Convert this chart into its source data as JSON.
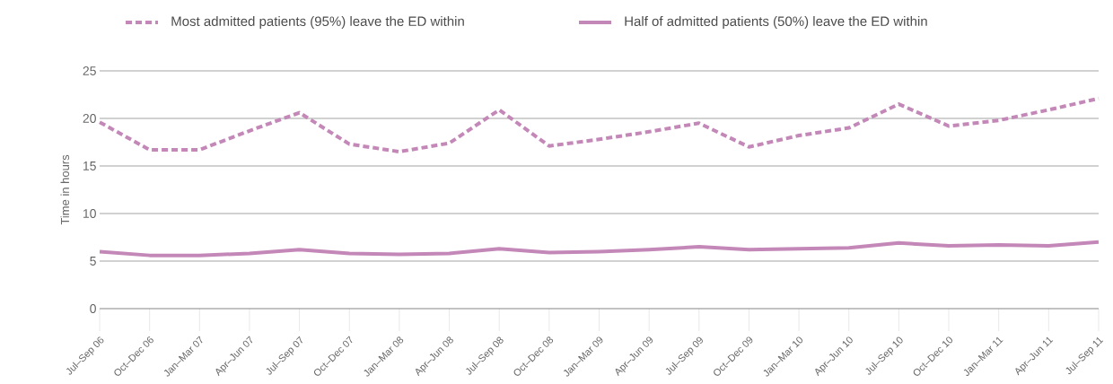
{
  "chart_data": {
    "type": "line",
    "ylabel": "Time in hours",
    "categories": [
      "Jul–Sep 06",
      "Oct–Dec 06",
      "Jan–Mar 07",
      "Apr–Jun 07",
      "Jul–Sep 07",
      "Oct–Dec 07",
      "Jan–Mar 08",
      "Apr–Jun 08",
      "Jul–Sep 08",
      "Oct–Dec 08",
      "Jan–Mar 09",
      "Apr–Jun 09",
      "Jul–Sep 09",
      "Oct–Dec 09",
      "Jan–Mar 10",
      "Apr–Jun 10",
      "Jul–Sep 10",
      "Oct–Dec 10",
      "Jan–Mar 11",
      "Apr–Jun 11",
      "Jul–Sep 11"
    ],
    "series": [
      {
        "name": "Most admitted patients (95%) leave the ED within",
        "color": "#c488b8",
        "line_style": "dashed",
        "values": [
          19.6,
          16.7,
          16.7,
          18.7,
          20.6,
          17.3,
          16.5,
          17.4,
          20.9,
          17.1,
          17.8,
          18.6,
          19.5,
          17.0,
          18.2,
          19.0,
          21.5,
          19.2,
          19.8,
          20.9,
          22.1
        ]
      },
      {
        "name": "Half of admitted patients (50%) leave the ED within",
        "color": "#c488b8",
        "line_style": "solid",
        "values": [
          6.0,
          5.6,
          5.6,
          5.8,
          6.2,
          5.8,
          5.7,
          5.8,
          6.3,
          5.9,
          6.0,
          6.2,
          6.5,
          6.2,
          6.3,
          6.4,
          6.9,
          6.6,
          6.7,
          6.6,
          7.0
        ]
      }
    ],
    "ylim": [
      0,
      25
    ],
    "yticks": [
      0,
      5,
      10,
      15,
      20,
      25
    ],
    "grid": "y",
    "legend": "top",
    "marker": "none"
  }
}
